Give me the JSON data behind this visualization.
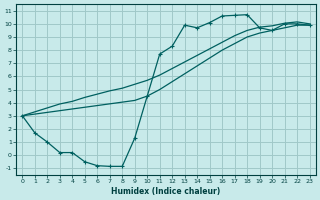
{
  "xlabel": "Humidex (Indice chaleur)",
  "ylabel": "",
  "bg_color": "#c8eaea",
  "grid_color": "#a0c8c8",
  "line_color": "#006060",
  "xlim": [
    -0.5,
    23.5
  ],
  "ylim": [
    -1.5,
    11.5
  ],
  "xticks": [
    0,
    1,
    2,
    3,
    4,
    5,
    6,
    7,
    8,
    9,
    10,
    11,
    12,
    13,
    14,
    15,
    16,
    17,
    18,
    19,
    20,
    21,
    22,
    23
  ],
  "yticks": [
    -1,
    0,
    1,
    2,
    3,
    4,
    5,
    6,
    7,
    8,
    9,
    10,
    11
  ],
  "line1_x": [
    0,
    1,
    2,
    3,
    4,
    5,
    6,
    7,
    8,
    9,
    10,
    11,
    12,
    13,
    14,
    15,
    16,
    17,
    18,
    19,
    20,
    21,
    22,
    23
  ],
  "line1_y": [
    3.0,
    1.7,
    1.0,
    0.2,
    0.2,
    -0.5,
    -0.8,
    -0.85,
    -0.85,
    1.3,
    4.5,
    7.7,
    8.3,
    9.9,
    9.7,
    10.1,
    10.6,
    10.65,
    10.7,
    9.7,
    9.5,
    10.0,
    10.0,
    9.9
  ],
  "line2_x": [
    0,
    1,
    2,
    3,
    4,
    5,
    6,
    7,
    8,
    9,
    10,
    11,
    12,
    13,
    14,
    15,
    16,
    17,
    18,
    19,
    20,
    21,
    22,
    23
  ],
  "line2_y": [
    3.0,
    3.13,
    3.26,
    3.39,
    3.52,
    3.65,
    3.78,
    3.91,
    4.04,
    4.17,
    4.5,
    5.0,
    5.6,
    6.2,
    6.8,
    7.4,
    8.0,
    8.5,
    9.0,
    9.3,
    9.5,
    9.7,
    9.9,
    9.9
  ],
  "line3_x": [
    0,
    1,
    2,
    3,
    4,
    5,
    6,
    7,
    8,
    9,
    10,
    11,
    12,
    13,
    14,
    15,
    16,
    17,
    18,
    19,
    20,
    21,
    22,
    23
  ],
  "line3_y": [
    3.0,
    3.3,
    3.6,
    3.9,
    4.1,
    4.4,
    4.65,
    4.9,
    5.1,
    5.4,
    5.7,
    6.1,
    6.6,
    7.1,
    7.6,
    8.1,
    8.6,
    9.1,
    9.5,
    9.75,
    9.85,
    10.05,
    10.15,
    10.0
  ]
}
